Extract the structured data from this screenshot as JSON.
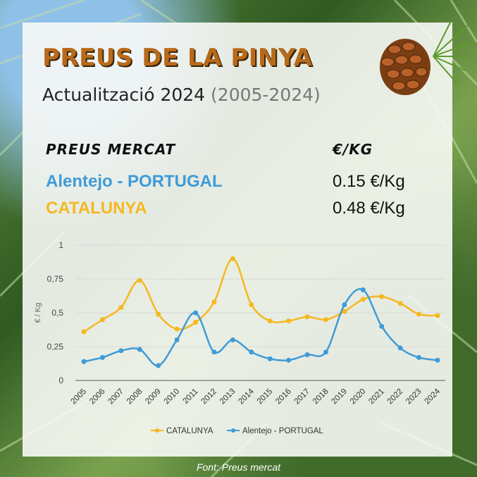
{
  "header": {
    "title": "PREUS DE LA PINYA",
    "subtitle_main": "Actualització 2024",
    "subtitle_range": "(2005-2024)"
  },
  "market": {
    "heading": "PREUS MERCAT",
    "unit_heading": "€/KG",
    "rows": [
      {
        "label": "Alentejo - PORTUGAL",
        "value": "0.15 €/Kg",
        "color": "#3f9bd6"
      },
      {
        "label": "CATALUNYA",
        "value": "0.48 €/Kg",
        "color": "#f5b820"
      }
    ]
  },
  "chart_data": {
    "type": "line",
    "ylabel": "€ / Kg",
    "ylim": [
      0,
      1
    ],
    "yticks": [
      "0",
      "0,25",
      "0,5",
      "0,75",
      "1"
    ],
    "ytick_values": [
      0,
      0.25,
      0.5,
      0.75,
      1
    ],
    "grid": true,
    "legend_position": "bottom",
    "x": [
      "2005",
      "2006",
      "2007",
      "2008",
      "2009",
      "2010",
      "2011",
      "2012",
      "2013",
      "2014",
      "2015",
      "2016",
      "2017",
      "2018",
      "2019",
      "2020",
      "2021",
      "2022",
      "2023",
      "2024"
    ],
    "series": [
      {
        "name": "CATALUNYA",
        "color": "#f5b820",
        "values": [
          0.36,
          0.45,
          0.54,
          0.74,
          0.49,
          0.38,
          0.43,
          0.58,
          0.9,
          0.56,
          0.44,
          0.44,
          0.47,
          0.45,
          0.51,
          0.6,
          0.62,
          0.57,
          0.49,
          0.48
        ]
      },
      {
        "name": "Alentejo - PORTUGAL",
        "color": "#3f9bd6",
        "values": [
          0.14,
          0.17,
          0.22,
          0.23,
          0.11,
          0.3,
          0.5,
          0.21,
          0.3,
          0.21,
          0.16,
          0.15,
          0.19,
          0.21,
          0.56,
          0.67,
          0.4,
          0.24,
          0.17,
          0.15
        ]
      }
    ]
  },
  "footer": {
    "source": "Font: Preus mercat"
  }
}
